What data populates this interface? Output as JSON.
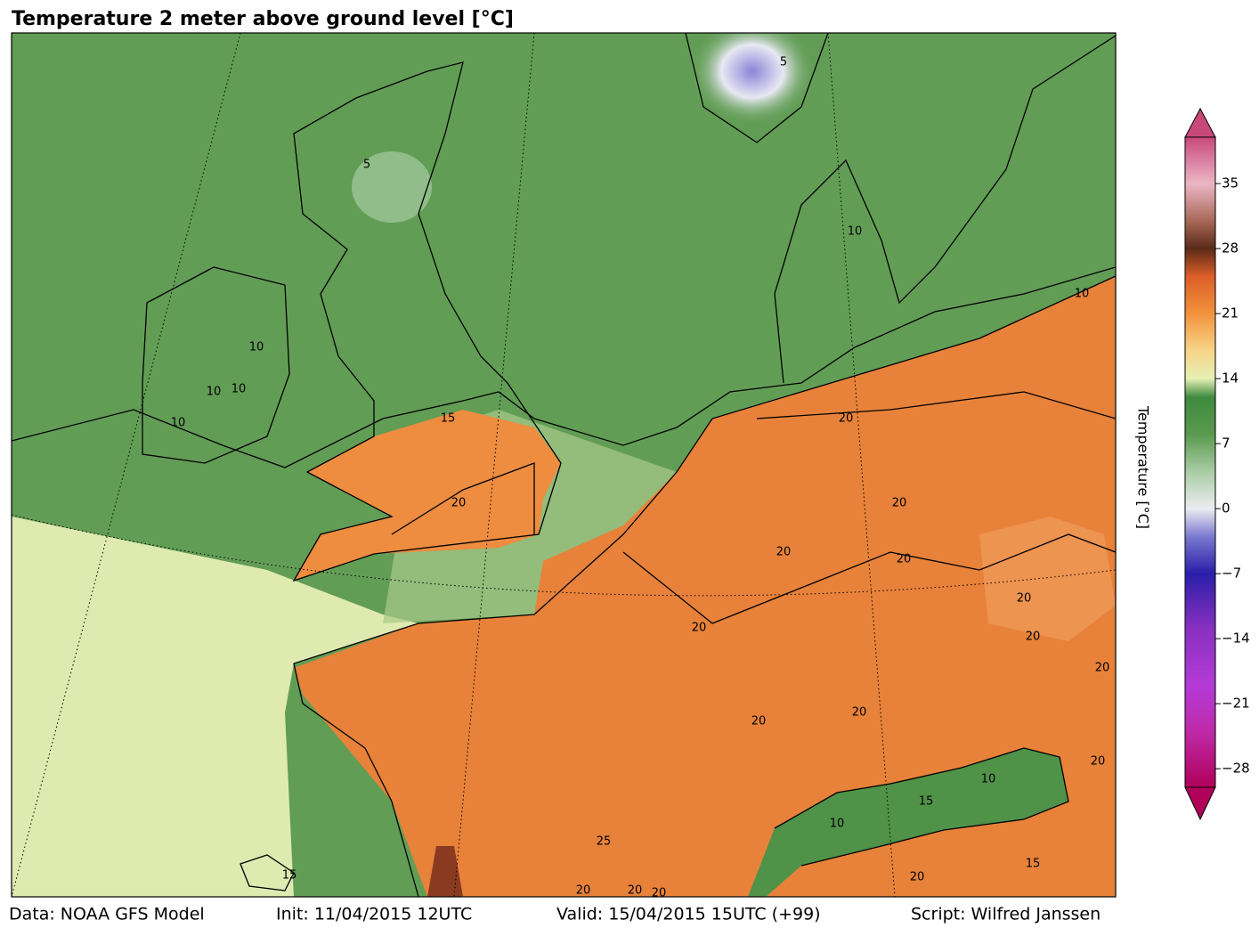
{
  "chart_data": {
    "type": "map",
    "title": "Temperature 2 meter above ground level [°C]",
    "colorbar_label": "Temperature [°C]",
    "colorbar_lim": [
      -30,
      40
    ],
    "colorbar_ticks": [
      {
        "value": -28,
        "label": "−28"
      },
      {
        "value": -21,
        "label": "−21"
      },
      {
        "value": -14,
        "label": "−14"
      },
      {
        "value": -7,
        "label": "−7"
      },
      0,
      7,
      14,
      21,
      28,
      35
    ],
    "colormap": [
      {
        "value": -30,
        "color": "#b0005a"
      },
      {
        "value": -24,
        "color": "#c02aa8"
      },
      {
        "value": -19,
        "color": "#b43ad8"
      },
      {
        "value": -13,
        "color": "#8a30c0"
      },
      {
        "value": -7,
        "color": "#2a1ea8"
      },
      {
        "value": -3,
        "color": "#7a7ad0"
      },
      {
        "value": 0,
        "color": "#ececf2"
      },
      {
        "value": 4,
        "color": "#a8cca4"
      },
      {
        "value": 8,
        "color": "#5a9a4e"
      },
      {
        "value": 12,
        "color": "#3e8a3e"
      },
      {
        "value": 14,
        "color": "#e6f0b4"
      },
      {
        "value": 17,
        "color": "#f8d488"
      },
      {
        "value": 21,
        "color": "#f2923c"
      },
      {
        "value": 25,
        "color": "#dc5e28"
      },
      {
        "value": 28,
        "color": "#5a2a18"
      },
      {
        "value": 31,
        "color": "#a86858"
      },
      {
        "value": 35,
        "color": "#ecb6c6"
      },
      {
        "value": 40,
        "color": "#c8487a"
      }
    ],
    "contour_labels": [
      5,
      5,
      10,
      10,
      10,
      10,
      10,
      10,
      15,
      20,
      20,
      20,
      20,
      20,
      20,
      20,
      20,
      20,
      20,
      20,
      20,
      10,
      10,
      15,
      15,
      15,
      25,
      20,
      20,
      20,
      20
    ],
    "footer": [
      "Data: NOAA GFS Model",
      "Init: 11/04/2015 12UTC",
      "Valid: 15/04/2015 15UTC (+99)",
      "Script: Wilfred Janssen"
    ]
  }
}
